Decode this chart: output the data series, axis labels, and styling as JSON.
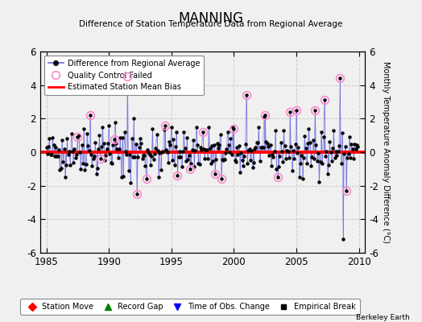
{
  "title": "MANNING",
  "subtitle": "Difference of Station Temperature Data from Regional Average",
  "ylabel": "Monthly Temperature Anomaly Difference (°C)",
  "xlabel_ticks": [
    1985,
    1990,
    1995,
    2000,
    2005,
    2010
  ],
  "ylim": [
    -6,
    6
  ],
  "yticks": [
    -6,
    -4,
    -2,
    0,
    2,
    4,
    6
  ],
  "xlim": [
    1984.5,
    2010.5
  ],
  "bg_color": "#f0f0f0",
  "plot_bg_color": "#f0f0f0",
  "line_color": "#6666dd",
  "dot_color": "#000000",
  "qc_color": "#ff88cc",
  "bias_color": "#ff0000",
  "watermark": "Berkeley Earth",
  "mean_bias": 0.0,
  "figsize": [
    5.24,
    4.0
  ],
  "dpi": 100
}
